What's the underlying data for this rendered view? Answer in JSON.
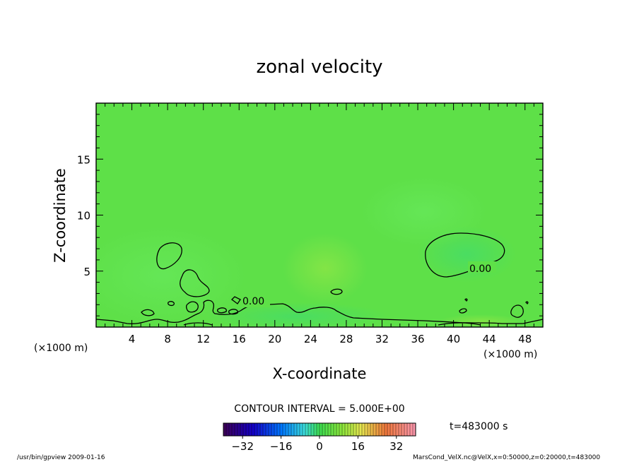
{
  "chart_data": {
    "type": "heatmap",
    "title": "zonal velocity",
    "xlabel": "X-coordinate",
    "ylabel": "Z-coordinate",
    "x_unit": "(×1000 m)",
    "xlim": [
      0,
      50
    ],
    "ylim": [
      0,
      20
    ],
    "x_ticks": [
      4,
      8,
      12,
      16,
      20,
      24,
      28,
      32,
      36,
      40,
      44,
      48
    ],
    "y_ticks": [
      5,
      10,
      15
    ],
    "contour_interval_label": "CONTOUR INTERVAL = 5.000E+00",
    "contour_labels": [
      "0.00",
      "0.00"
    ],
    "time_label": "t=483000 s",
    "colorbar": {
      "range": [
        -40,
        40
      ],
      "ticks": [
        -32,
        -16,
        0,
        16,
        32
      ]
    }
  },
  "footer": {
    "left": "/usr/bin/gpview  2009-01-16",
    "right": "MarsCond_VelX.nc@VelX,x=0:50000,z=0:20000,t=483000"
  }
}
